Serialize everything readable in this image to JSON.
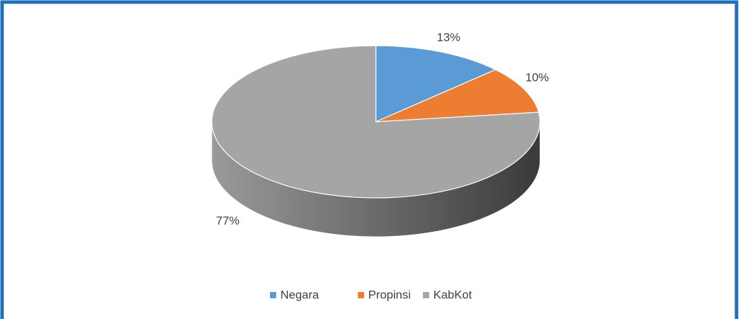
{
  "chart_data": {
    "type": "pie",
    "categories": [
      "Negara",
      "Propinsi",
      "KabKot"
    ],
    "values": [
      13,
      10,
      77
    ],
    "value_labels": [
      "13%",
      "10%",
      "77%"
    ],
    "colors": [
      "#5b9bd5",
      "#ed7d31",
      "#a5a5a5"
    ],
    "legend": "bottom"
  }
}
